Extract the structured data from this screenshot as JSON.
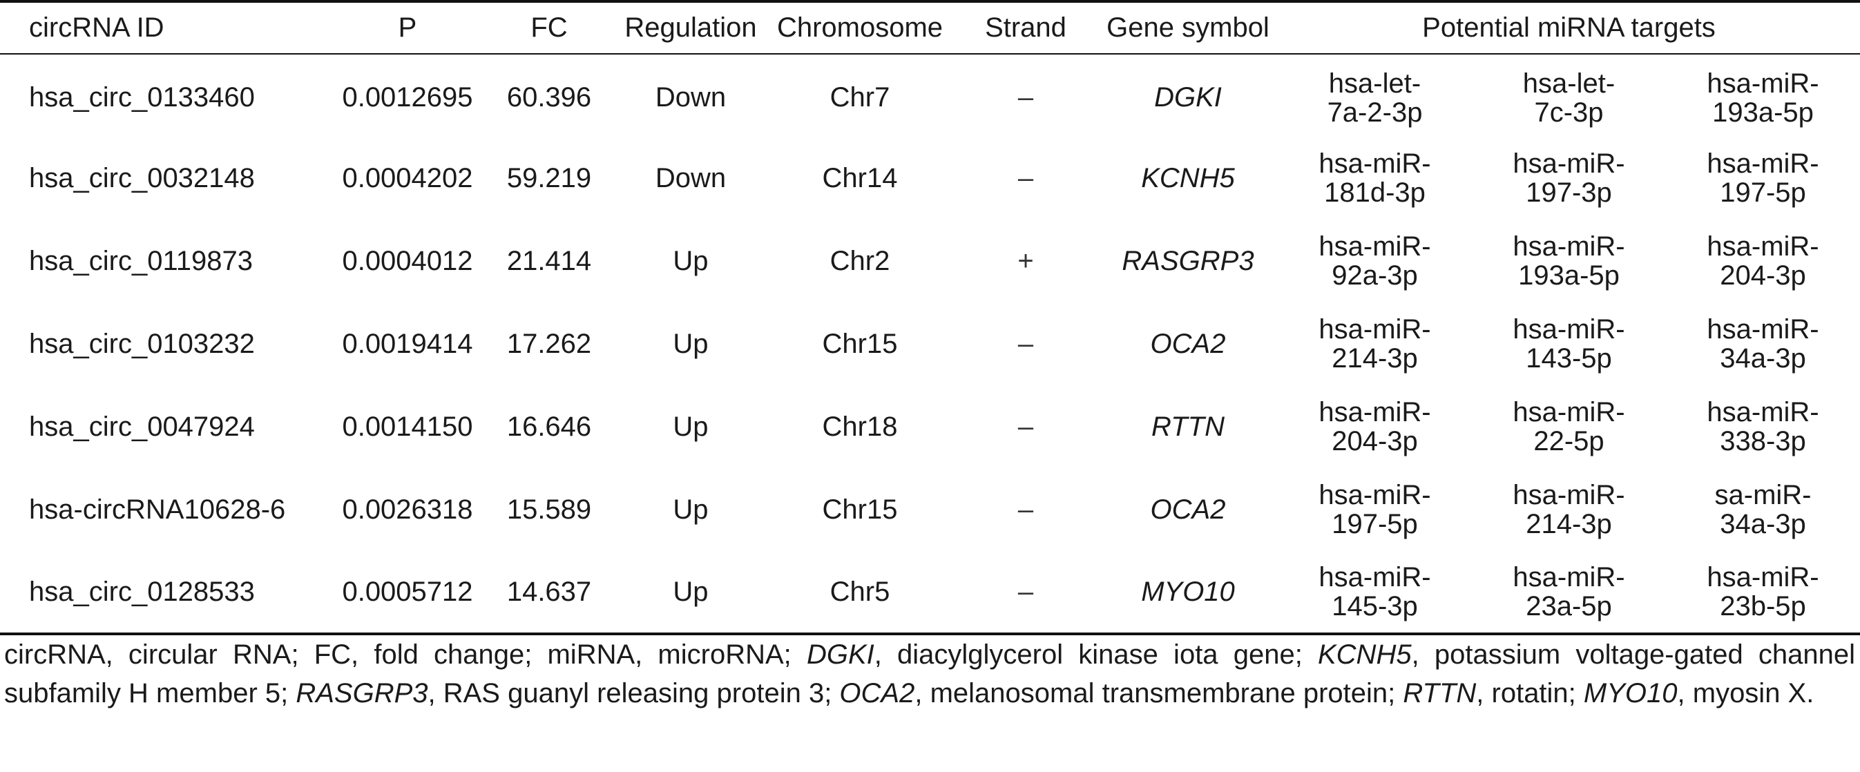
{
  "table": {
    "headers": [
      "circRNA ID",
      "P",
      "FC",
      "Regulation",
      "Chromosome",
      "Strand",
      "Gene symbol",
      "Potential miRNA targets"
    ],
    "rows": [
      {
        "id": "hsa_circ_0133460",
        "p": "0.0012695",
        "fc": "60.396",
        "regulation": "Down",
        "chromosome": "Chr7",
        "strand": "–",
        "gene": "DGKI",
        "mirna": [
          [
            "hsa-let-",
            "7a-2-3p"
          ],
          [
            "hsa-let-",
            "7c-3p"
          ],
          [
            "hsa-miR-",
            "193a-5p"
          ]
        ]
      },
      {
        "id": "hsa_circ_0032148",
        "p": "0.0004202",
        "fc": "59.219",
        "regulation": "Down",
        "chromosome": "Chr14",
        "strand": "–",
        "gene": "KCNH5",
        "mirna": [
          [
            "hsa-miR-",
            "181d-3p"
          ],
          [
            "hsa-miR-",
            "197-3p"
          ],
          [
            "hsa-miR-",
            "197-5p"
          ]
        ]
      },
      {
        "id": "hsa_circ_0119873",
        "p": "0.0004012",
        "fc": "21.414",
        "regulation": "Up",
        "chromosome": "Chr2",
        "strand": "+",
        "gene": "RASGRP3",
        "mirna": [
          [
            "hsa-miR-",
            "92a-3p"
          ],
          [
            "hsa-miR-",
            "193a-5p"
          ],
          [
            "hsa-miR-",
            "204-3p"
          ]
        ]
      },
      {
        "id": "hsa_circ_0103232",
        "p": "0.0019414",
        "fc": "17.262",
        "regulation": "Up",
        "chromosome": "Chr15",
        "strand": "–",
        "gene": "OCA2",
        "mirna": [
          [
            "hsa-miR-",
            "214-3p"
          ],
          [
            "hsa-miR-",
            "143-5p"
          ],
          [
            "hsa-miR-",
            "34a-3p"
          ]
        ]
      },
      {
        "id": "hsa_circ_0047924",
        "p": "0.0014150",
        "fc": "16.646",
        "regulation": "Up",
        "chromosome": "Chr18",
        "strand": "–",
        "gene": "RTTN",
        "mirna": [
          [
            "hsa-miR-",
            "204-3p"
          ],
          [
            "hsa-miR-",
            "22-5p"
          ],
          [
            "hsa-miR-",
            "338-3p"
          ]
        ]
      },
      {
        "id": "hsa-circRNA10628-6",
        "p": "0.0026318",
        "fc": "15.589",
        "regulation": "Up",
        "chromosome": "Chr15",
        "strand": "–",
        "gene": "OCA2",
        "mirna": [
          [
            "hsa-miR-",
            "197-5p"
          ],
          [
            "hsa-miR-",
            "214-3p"
          ],
          [
            "sa-miR-",
            "34a-3p"
          ]
        ]
      },
      {
        "id": "hsa_circ_0128533",
        "p": "0.0005712",
        "fc": "14.637",
        "regulation": "Up",
        "chromosome": "Chr5",
        "strand": "–",
        "gene": "MYO10",
        "mirna": [
          [
            "hsa-miR-",
            "145-3p"
          ],
          [
            "hsa-miR-",
            "23a-5p"
          ],
          [
            "hsa-miR-",
            "23b-5p"
          ]
        ]
      }
    ]
  },
  "footnote": [
    {
      "t": "circRNA, circular RNA; FC, fold change; miRNA, microRNA; "
    },
    {
      "t": "DGKI",
      "i": true
    },
    {
      "t": ", diacylglycerol kinase iota gene; "
    },
    {
      "t": "KCNH5",
      "i": true
    },
    {
      "t": ", potassium voltage-gated channel subfamily H member 5; "
    },
    {
      "t": "RASGRP3",
      "i": true
    },
    {
      "t": ", RAS guanyl releasing protein 3; "
    },
    {
      "t": "OCA2",
      "i": true
    },
    {
      "t": ", melanosomal transmembrane protein; "
    },
    {
      "t": "RTTN",
      "i": true
    },
    {
      "t": ", rotatin; "
    },
    {
      "t": "MYO10",
      "i": true
    },
    {
      "t": ", myosin X."
    }
  ]
}
